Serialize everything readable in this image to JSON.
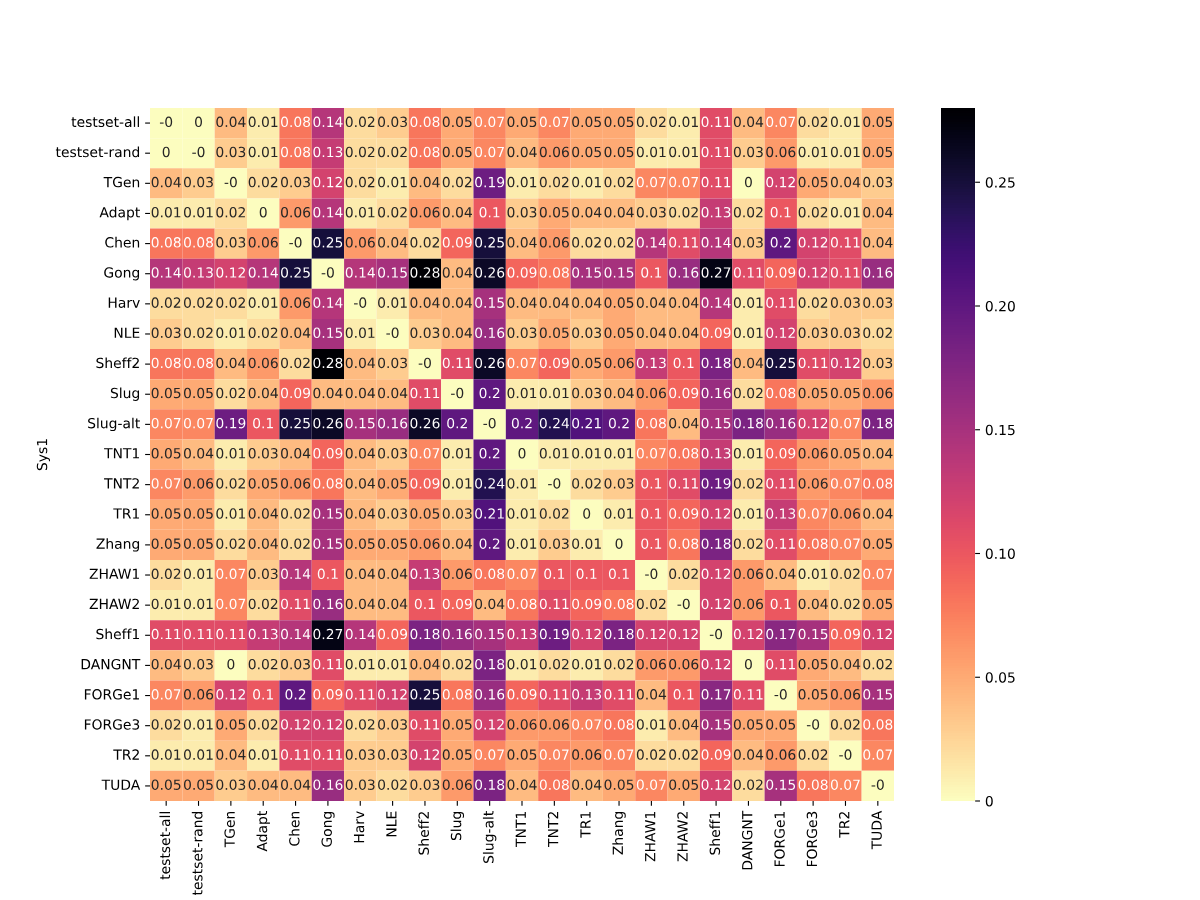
{
  "chart_data": {
    "type": "heatmap",
    "ylabel": "Sys1",
    "categories": [
      "testset-all",
      "testset-rand",
      "TGen",
      "Adapt",
      "Chen",
      "Gong",
      "Harv",
      "NLE",
      "Sheff2",
      "Slug",
      "Slug-alt",
      "TNT1",
      "TNT2",
      "TR1",
      "Zhang",
      "ZHAW1",
      "ZHAW2",
      "Sheff1",
      "DANGNT",
      "FORGe1",
      "FORGe3",
      "TR2",
      "TUDA"
    ],
    "y_categories": [
      "testset-all",
      "testset-rand",
      "TGen",
      "Adapt",
      "Chen",
      "Gong",
      "Harv",
      "NLE",
      "Sheff2",
      "Slug",
      "Slug-alt",
      "TNT1",
      "TNT2",
      "TR1",
      "Zhang",
      "ZHAW1",
      "ZHAW2",
      "Sheff1",
      "DANGNT",
      "FORGe1",
      "FORGe3",
      "TR2",
      "TUDA"
    ],
    "cells": [
      [
        0,
        0,
        0.04,
        0.01,
        0.08,
        0.14,
        0.02,
        0.03,
        0.08,
        0.05,
        0.07,
        0.05,
        0.07,
        0.05,
        0.05,
        0.02,
        0.01,
        0.11,
        0.04,
        0.07,
        0.02,
        0.01,
        0.05
      ],
      [
        0,
        0,
        0.03,
        0.01,
        0.08,
        0.13,
        0.02,
        0.02,
        0.08,
        0.05,
        0.07,
        0.04,
        0.06,
        0.05,
        0.05,
        0.01,
        0.01,
        0.11,
        0.03,
        0.06,
        0.01,
        0.01,
        0.05
      ],
      [
        0.04,
        0.03,
        0,
        0.02,
        0.03,
        0.12,
        0.02,
        0.01,
        0.04,
        0.02,
        0.19,
        0.01,
        0.02,
        0.01,
        0.02,
        0.07,
        0.07,
        0.11,
        0,
        0.12,
        0.05,
        0.04,
        0.03
      ],
      [
        0.01,
        0.01,
        0.02,
        0,
        0.06,
        0.14,
        0.01,
        0.02,
        0.06,
        0.04,
        0.1,
        0.03,
        0.05,
        0.04,
        0.04,
        0.03,
        0.02,
        0.13,
        0.02,
        0.1,
        0.02,
        0.01,
        0.04
      ],
      [
        0.08,
        0.08,
        0.03,
        0.06,
        0,
        0.25,
        0.06,
        0.04,
        0.02,
        0.09,
        0.25,
        0.04,
        0.06,
        0.02,
        0.02,
        0.14,
        0.11,
        0.14,
        0.03,
        0.2,
        0.12,
        0.11,
        0.04
      ],
      [
        0.14,
        0.13,
        0.12,
        0.14,
        0.25,
        0,
        0.14,
        0.15,
        0.28,
        0.04,
        0.26,
        0.09,
        0.08,
        0.15,
        0.15,
        0.1,
        0.16,
        0.27,
        0.11,
        0.09,
        0.12,
        0.11,
        0.16
      ],
      [
        0.02,
        0.02,
        0.02,
        0.01,
        0.06,
        0.14,
        0,
        0.01,
        0.04,
        0.04,
        0.15,
        0.04,
        0.04,
        0.04,
        0.05,
        0.04,
        0.04,
        0.14,
        0.01,
        0.11,
        0.02,
        0.03,
        0.03
      ],
      [
        0.03,
        0.02,
        0.01,
        0.02,
        0.04,
        0.15,
        0.01,
        0,
        0.03,
        0.04,
        0.16,
        0.03,
        0.05,
        0.03,
        0.05,
        0.04,
        0.04,
        0.09,
        0.01,
        0.12,
        0.03,
        0.03,
        0.02
      ],
      [
        0.08,
        0.08,
        0.04,
        0.06,
        0.02,
        0.28,
        0.04,
        0.03,
        0,
        0.11,
        0.26,
        0.07,
        0.09,
        0.05,
        0.06,
        0.13,
        0.1,
        0.18,
        0.04,
        0.25,
        0.11,
        0.12,
        0.03
      ],
      [
        0.05,
        0.05,
        0.02,
        0.04,
        0.09,
        0.04,
        0.04,
        0.04,
        0.11,
        0,
        0.2,
        0.01,
        0.01,
        0.03,
        0.04,
        0.06,
        0.09,
        0.16,
        0.02,
        0.08,
        0.05,
        0.05,
        0.06
      ],
      [
        0.07,
        0.07,
        0.19,
        0.1,
        0.25,
        0.26,
        0.15,
        0.16,
        0.26,
        0.2,
        0,
        0.2,
        0.24,
        0.21,
        0.2,
        0.08,
        0.04,
        0.15,
        0.18,
        0.16,
        0.12,
        0.07,
        0.18
      ],
      [
        0.05,
        0.04,
        0.01,
        0.03,
        0.04,
        0.09,
        0.04,
        0.03,
        0.07,
        0.01,
        0.2,
        0,
        0.01,
        0.01,
        0.01,
        0.07,
        0.08,
        0.13,
        0.01,
        0.09,
        0.06,
        0.05,
        0.04
      ],
      [
        0.07,
        0.06,
        0.02,
        0.05,
        0.06,
        0.08,
        0.04,
        0.05,
        0.09,
        0.01,
        0.24,
        0.01,
        0,
        0.02,
        0.03,
        0.1,
        0.11,
        0.19,
        0.02,
        0.11,
        0.06,
        0.07,
        0.08
      ],
      [
        0.05,
        0.05,
        0.01,
        0.04,
        0.02,
        0.15,
        0.04,
        0.03,
        0.05,
        0.03,
        0.21,
        0.01,
        0.02,
        0,
        0.01,
        0.1,
        0.09,
        0.12,
        0.01,
        0.13,
        0.07,
        0.06,
        0.04
      ],
      [
        0.05,
        0.05,
        0.02,
        0.04,
        0.02,
        0.15,
        0.05,
        0.05,
        0.06,
        0.04,
        0.2,
        0.01,
        0.03,
        0.01,
        0,
        0.1,
        0.08,
        0.18,
        0.02,
        0.11,
        0.08,
        0.07,
        0.05
      ],
      [
        0.02,
        0.01,
        0.07,
        0.03,
        0.14,
        0.1,
        0.04,
        0.04,
        0.13,
        0.06,
        0.08,
        0.07,
        0.1,
        0.1,
        0.1,
        0,
        0.02,
        0.12,
        0.06,
        0.04,
        0.01,
        0.02,
        0.07
      ],
      [
        0.01,
        0.01,
        0.07,
        0.02,
        0.11,
        0.16,
        0.04,
        0.04,
        0.1,
        0.09,
        0.04,
        0.08,
        0.11,
        0.09,
        0.08,
        0.02,
        0,
        0.12,
        0.06,
        0.1,
        0.04,
        0.02,
        0.05
      ],
      [
        0.11,
        0.11,
        0.11,
        0.13,
        0.14,
        0.27,
        0.14,
        0.09,
        0.18,
        0.16,
        0.15,
        0.13,
        0.19,
        0.12,
        0.18,
        0.12,
        0.12,
        0,
        0.12,
        0.17,
        0.15,
        0.09,
        0.12
      ],
      [
        0.04,
        0.03,
        0,
        0.02,
        0.03,
        0.11,
        0.01,
        0.01,
        0.04,
        0.02,
        0.18,
        0.01,
        0.02,
        0.01,
        0.02,
        0.06,
        0.06,
        0.12,
        0,
        0.11,
        0.05,
        0.04,
        0.02
      ],
      [
        0.07,
        0.06,
        0.12,
        0.1,
        0.2,
        0.09,
        0.11,
        0.12,
        0.25,
        0.08,
        0.16,
        0.09,
        0.11,
        0.13,
        0.11,
        0.04,
        0.1,
        0.17,
        0.11,
        0,
        0.05,
        0.06,
        0.15
      ],
      [
        0.02,
        0.01,
        0.05,
        0.02,
        0.12,
        0.12,
        0.02,
        0.03,
        0.11,
        0.05,
        0.12,
        0.06,
        0.06,
        0.07,
        0.08,
        0.01,
        0.04,
        0.15,
        0.05,
        0.05,
        0,
        0.02,
        0.08
      ],
      [
        0.01,
        0.01,
        0.04,
        0.01,
        0.11,
        0.11,
        0.03,
        0.03,
        0.12,
        0.05,
        0.07,
        0.05,
        0.07,
        0.06,
        0.07,
        0.02,
        0.02,
        0.09,
        0.04,
        0.06,
        0.02,
        0,
        0.07
      ],
      [
        0.05,
        0.05,
        0.03,
        0.04,
        0.04,
        0.16,
        0.03,
        0.02,
        0.03,
        0.06,
        0.18,
        0.04,
        0.08,
        0.04,
        0.05,
        0.07,
        0.05,
        0.12,
        0.02,
        0.15,
        0.08,
        0.07,
        0
      ]
    ],
    "cell_labels": [
      [
        "-0",
        "0",
        "0.04",
        "0.01",
        "0.08",
        "0.14",
        "0.02",
        "0.03",
        "0.08",
        "0.05",
        "0.07",
        "0.05",
        "0.07",
        "0.05",
        "0.05",
        "0.02",
        "0.01",
        "0.11",
        "0.04",
        "0.07",
        "0.02",
        "0.01",
        "0.05"
      ],
      [
        "0",
        "-0",
        "0.03",
        "0.01",
        "0.08",
        "0.13",
        "0.02",
        "0.02",
        "0.08",
        "0.05",
        "0.07",
        "0.04",
        "0.06",
        "0.05",
        "0.05",
        "0.01",
        "0.01",
        "0.11",
        "0.03",
        "0.06",
        "0.01",
        "0.01",
        "0.05"
      ],
      [
        "0.04",
        "0.03",
        "-0",
        "0.02",
        "0.03",
        "0.12",
        "0.02",
        "0.01",
        "0.04",
        "0.02",
        "0.19",
        "0.01",
        "0.02",
        "0.01",
        "0.02",
        "0.07",
        "0.07",
        "0.11",
        "0",
        "0.12",
        "0.05",
        "0.04",
        "0.03"
      ],
      [
        "0.01",
        "0.01",
        "0.02",
        "0",
        "0.06",
        "0.14",
        "0.01",
        "0.02",
        "0.06",
        "0.04",
        "0.1",
        "0.03",
        "0.05",
        "0.04",
        "0.04",
        "0.03",
        "0.02",
        "0.13",
        "0.02",
        "0.1",
        "0.02",
        "0.01",
        "0.04"
      ],
      [
        "0.08",
        "0.08",
        "0.03",
        "0.06",
        "-0",
        "0.25",
        "0.06",
        "0.04",
        "0.02",
        "0.09",
        "0.25",
        "0.04",
        "0.06",
        "0.02",
        "0.02",
        "0.14",
        "0.11",
        "0.14",
        "0.03",
        "0.2",
        "0.12",
        "0.11",
        "0.04"
      ],
      [
        "0.14",
        "0.13",
        "0.12",
        "0.14",
        "0.25",
        "-0",
        "0.14",
        "0.15",
        "0.28",
        "0.04",
        "0.26",
        "0.09",
        "0.08",
        "0.15",
        "0.15",
        "0.1",
        "0.16",
        "0.27",
        "0.11",
        "0.09",
        "0.12",
        "0.11",
        "0.16"
      ],
      [
        "0.02",
        "0.02",
        "0.02",
        "0.01",
        "0.06",
        "0.14",
        "-0",
        "0.01",
        "0.04",
        "0.04",
        "0.15",
        "0.04",
        "0.04",
        "0.04",
        "0.05",
        "0.04",
        "0.04",
        "0.14",
        "0.01",
        "0.11",
        "0.02",
        "0.03",
        "0.03"
      ],
      [
        "0.03",
        "0.02",
        "0.01",
        "0.02",
        "0.04",
        "0.15",
        "0.01",
        "-0",
        "0.03",
        "0.04",
        "0.16",
        "0.03",
        "0.05",
        "0.03",
        "0.05",
        "0.04",
        "0.04",
        "0.09",
        "0.01",
        "0.12",
        "0.03",
        "0.03",
        "0.02"
      ],
      [
        "0.08",
        "0.08",
        "0.04",
        "0.06",
        "0.02",
        "0.28",
        "0.04",
        "0.03",
        "-0",
        "0.11",
        "0.26",
        "0.07",
        "0.09",
        "0.05",
        "0.06",
        "0.13",
        "0.1",
        "0.18",
        "0.04",
        "0.25",
        "0.11",
        "0.12",
        "0.03"
      ],
      [
        "0.05",
        "0.05",
        "0.02",
        "0.04",
        "0.09",
        "0.04",
        "0.04",
        "0.04",
        "0.11",
        "-0",
        "0.2",
        "0.01",
        "0.01",
        "0.03",
        "0.04",
        "0.06",
        "0.09",
        "0.16",
        "0.02",
        "0.08",
        "0.05",
        "0.05",
        "0.06"
      ],
      [
        "0.07",
        "0.07",
        "0.19",
        "0.1",
        "0.25",
        "0.26",
        "0.15",
        "0.16",
        "0.26",
        "0.2",
        "-0",
        "0.2",
        "0.24",
        "0.21",
        "0.2",
        "0.08",
        "0.04",
        "0.15",
        "0.18",
        "0.16",
        "0.12",
        "0.07",
        "0.18"
      ],
      [
        "0.05",
        "0.04",
        "0.01",
        "0.03",
        "0.04",
        "0.09",
        "0.04",
        "0.03",
        "0.07",
        "0.01",
        "0.2",
        "0",
        "0.01",
        "0.01",
        "0.01",
        "0.07",
        "0.08",
        "0.13",
        "0.01",
        "0.09",
        "0.06",
        "0.05",
        "0.04"
      ],
      [
        "0.07",
        "0.06",
        "0.02",
        "0.05",
        "0.06",
        "0.08",
        "0.04",
        "0.05",
        "0.09",
        "0.01",
        "0.24",
        "0.01",
        "-0",
        "0.02",
        "0.03",
        "0.1",
        "0.11",
        "0.19",
        "0.02",
        "0.11",
        "0.06",
        "0.07",
        "0.08"
      ],
      [
        "0.05",
        "0.05",
        "0.01",
        "0.04",
        "0.02",
        "0.15",
        "0.04",
        "0.03",
        "0.05",
        "0.03",
        "0.21",
        "0.01",
        "0.02",
        "0",
        "0.01",
        "0.1",
        "0.09",
        "0.12",
        "0.01",
        "0.13",
        "0.07",
        "0.06",
        "0.04"
      ],
      [
        "0.05",
        "0.05",
        "0.02",
        "0.04",
        "0.02",
        "0.15",
        "0.05",
        "0.05",
        "0.06",
        "0.04",
        "0.2",
        "0.01",
        "0.03",
        "0.01",
        "0",
        "0.1",
        "0.08",
        "0.18",
        "0.02",
        "0.11",
        "0.08",
        "0.07",
        "0.05"
      ],
      [
        "0.02",
        "0.01",
        "0.07",
        "0.03",
        "0.14",
        "0.1",
        "0.04",
        "0.04",
        "0.13",
        "0.06",
        "0.08",
        "0.07",
        "0.1",
        "0.1",
        "0.1",
        "-0",
        "0.02",
        "0.12",
        "0.06",
        "0.04",
        "0.01",
        "0.02",
        "0.07"
      ],
      [
        "0.01",
        "0.01",
        "0.07",
        "0.02",
        "0.11",
        "0.16",
        "0.04",
        "0.04",
        "0.1",
        "0.09",
        "0.04",
        "0.08",
        "0.11",
        "0.09",
        "0.08",
        "0.02",
        "-0",
        "0.12",
        "0.06",
        "0.1",
        "0.04",
        "0.02",
        "0.05"
      ],
      [
        "0.11",
        "0.11",
        "0.11",
        "0.13",
        "0.14",
        "0.27",
        "0.14",
        "0.09",
        "0.18",
        "0.16",
        "0.15",
        "0.13",
        "0.19",
        "0.12",
        "0.18",
        "0.12",
        "0.12",
        "-0",
        "0.12",
        "0.17",
        "0.15",
        "0.09",
        "0.12"
      ],
      [
        "0.04",
        "0.03",
        "0",
        "0.02",
        "0.03",
        "0.11",
        "0.01",
        "0.01",
        "0.04",
        "0.02",
        "0.18",
        "0.01",
        "0.02",
        "0.01",
        "0.02",
        "0.06",
        "0.06",
        "0.12",
        "0",
        "0.11",
        "0.05",
        "0.04",
        "0.02"
      ],
      [
        "0.07",
        "0.06",
        "0.12",
        "0.1",
        "0.2",
        "0.09",
        "0.11",
        "0.12",
        "0.25",
        "0.08",
        "0.16",
        "0.09",
        "0.11",
        "0.13",
        "0.11",
        "0.04",
        "0.1",
        "0.17",
        "0.11",
        "-0",
        "0.05",
        "0.06",
        "0.15"
      ],
      [
        "0.02",
        "0.01",
        "0.05",
        "0.02",
        "0.12",
        "0.12",
        "0.02",
        "0.03",
        "0.11",
        "0.05",
        "0.12",
        "0.06",
        "0.06",
        "0.07",
        "0.08",
        "0.01",
        "0.04",
        "0.15",
        "0.05",
        "0.05",
        "-0",
        "0.02",
        "0.08"
      ],
      [
        "0.01",
        "0.01",
        "0.04",
        "0.01",
        "0.11",
        "0.11",
        "0.03",
        "0.03",
        "0.12",
        "0.05",
        "0.07",
        "0.05",
        "0.07",
        "0.06",
        "0.07",
        "0.02",
        "0.02",
        "0.09",
        "0.04",
        "0.06",
        "0.02",
        "-0",
        "0.07"
      ],
      [
        "0.05",
        "0.05",
        "0.03",
        "0.04",
        "0.04",
        "0.16",
        "0.03",
        "0.02",
        "0.03",
        "0.06",
        "0.18",
        "0.04",
        "0.08",
        "0.04",
        "0.05",
        "0.07",
        "0.05",
        "0.12",
        "0.02",
        "0.15",
        "0.08",
        "0.07",
        "-0"
      ]
    ],
    "clim": [
      0,
      0.28
    ],
    "cticks": [
      0,
      {
        "value": 0.05,
        "label": "0.05"
      },
      {
        "value": 0.1,
        "label": "0.10"
      },
      {
        "value": 0.15,
        "label": "0.15"
      },
      {
        "value": 0.2,
        "label": "0.20"
      },
      {
        "value": 0.25,
        "label": "0.25"
      }
    ]
  }
}
